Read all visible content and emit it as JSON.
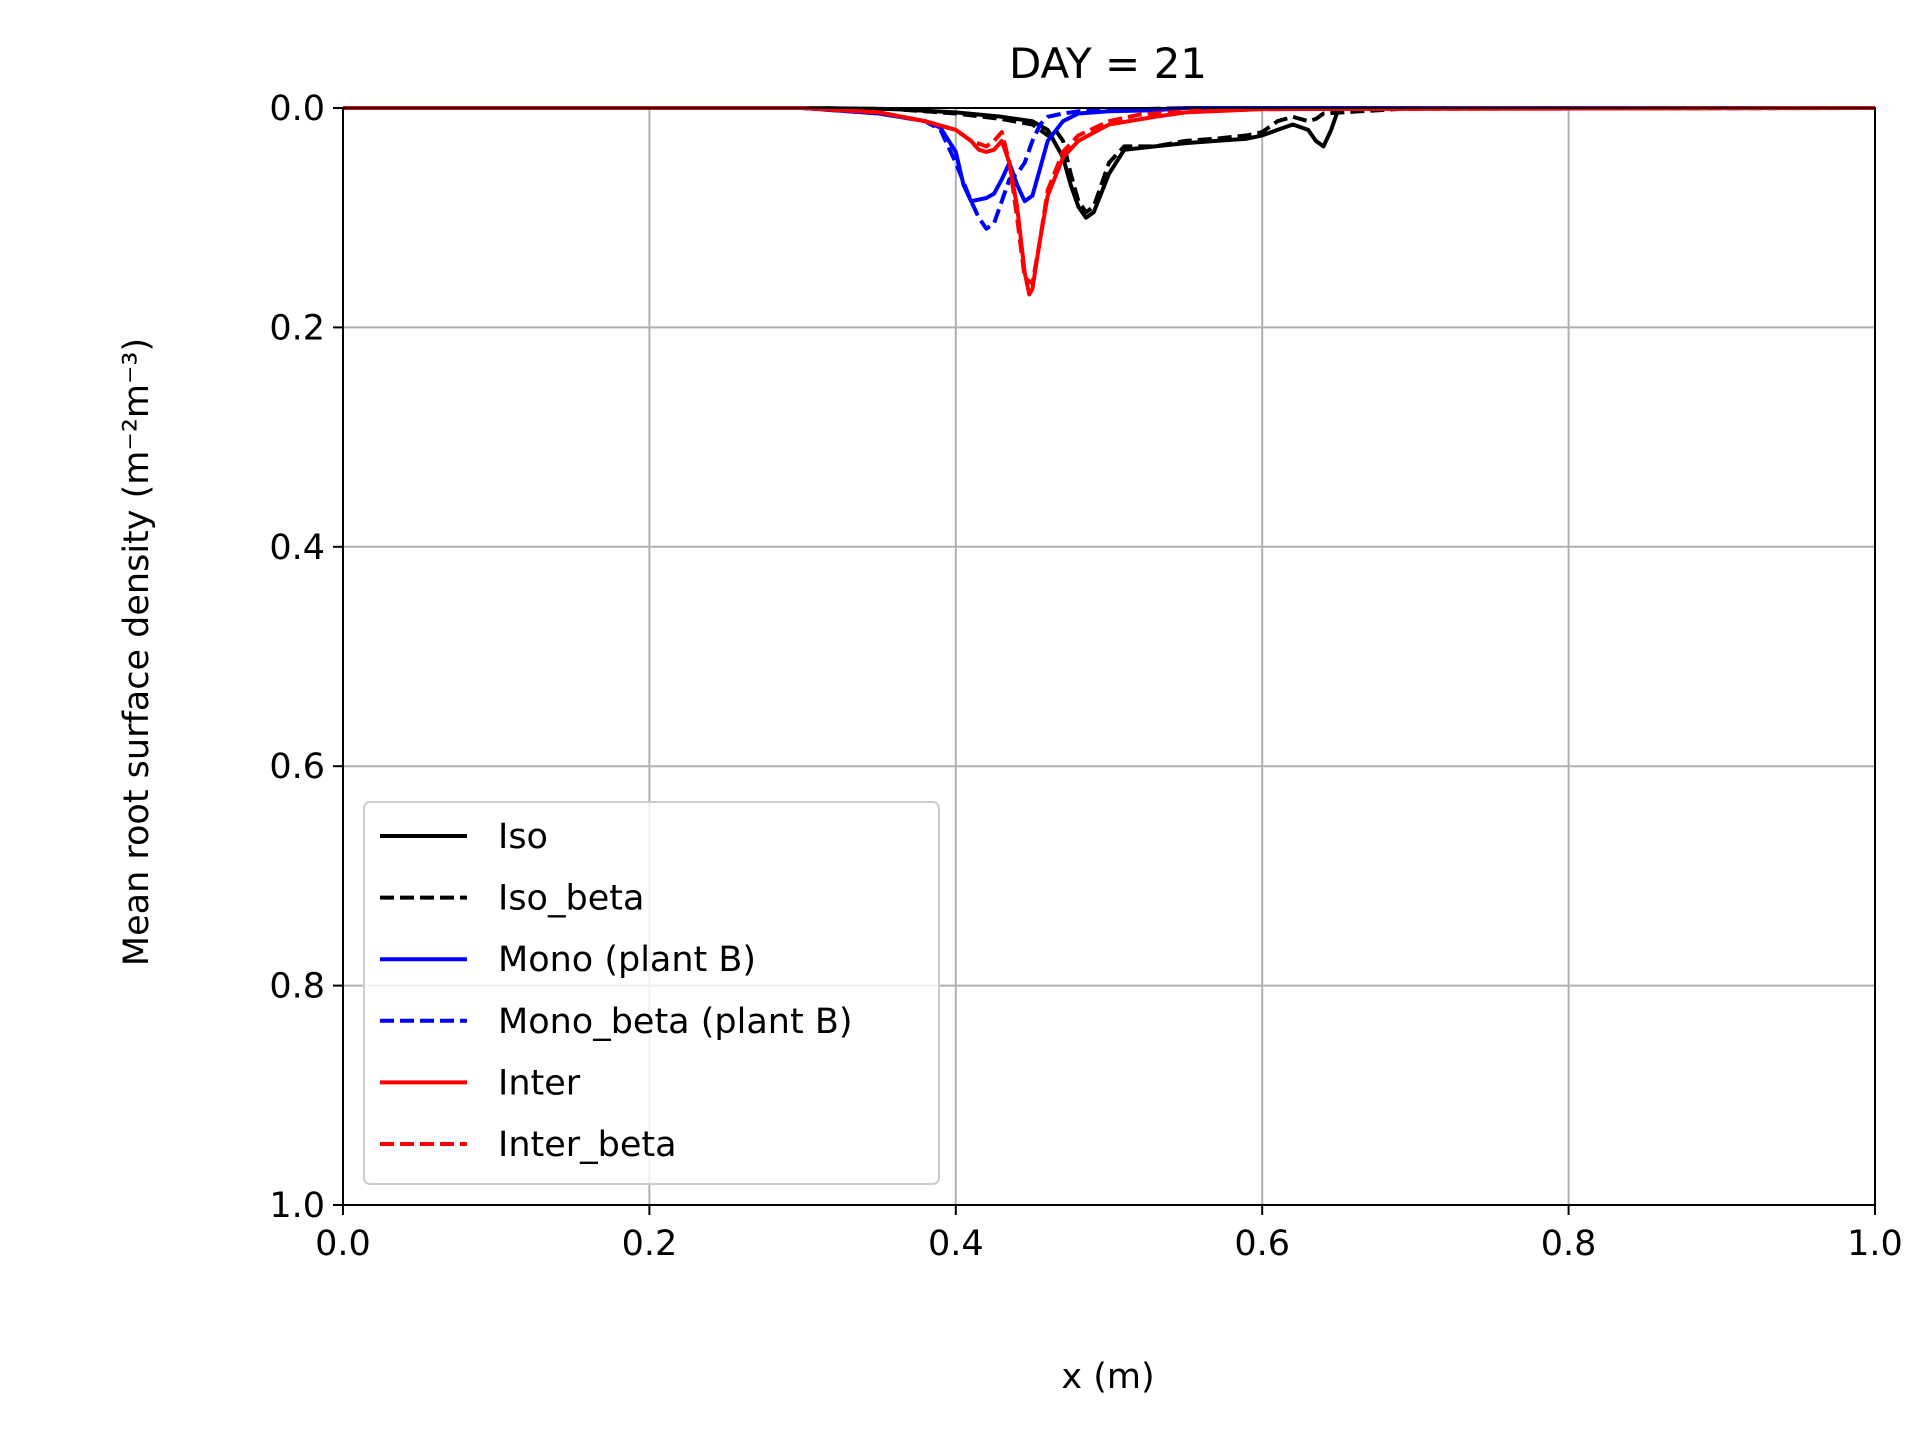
{
  "chart_data": {
    "type": "line",
    "title": "DAY = 21",
    "xlabel": "x (m)",
    "ylabel": "Mean root surface density (m⁻²m⁻³)",
    "xlim": [
      0,
      1
    ],
    "ylim": [
      0,
      1
    ],
    "y_inverted": true,
    "grid": true,
    "legend_position": "lower-left",
    "x_ticks": [
      {
        "value": 0.0,
        "label": "0.0"
      },
      {
        "value": 0.2,
        "label": "0.2"
      },
      {
        "value": 0.4,
        "label": "0.4"
      },
      {
        "value": 0.6,
        "label": "0.6"
      },
      {
        "value": 0.8,
        "label": "0.8"
      },
      {
        "value": 1.0,
        "label": "1.0"
      }
    ],
    "y_ticks": [
      {
        "value": 0.0,
        "label": "0.0"
      },
      {
        "value": 0.2,
        "label": "0.2"
      },
      {
        "value": 0.4,
        "label": "0.4"
      },
      {
        "value": 0.6,
        "label": "0.6"
      },
      {
        "value": 0.8,
        "label": "0.8"
      },
      {
        "value": 1.0,
        "label": "1.0"
      }
    ],
    "series": [
      {
        "name": "Iso",
        "color": "#000000",
        "dash": "solid",
        "x": [
          0.0,
          0.3,
          0.36,
          0.4,
          0.43,
          0.45,
          0.46,
          0.47,
          0.475,
          0.48,
          0.485,
          0.49,
          0.5,
          0.51,
          0.53,
          0.55,
          0.57,
          0.59,
          0.6,
          0.61,
          0.62,
          0.63,
          0.635,
          0.64,
          0.645,
          0.65,
          0.7,
          1.0
        ],
        "y": [
          0.0,
          0.0,
          0.001,
          0.004,
          0.008,
          0.012,
          0.02,
          0.045,
          0.07,
          0.09,
          0.1,
          0.095,
          0.06,
          0.038,
          0.035,
          0.032,
          0.03,
          0.028,
          0.025,
          0.02,
          0.015,
          0.02,
          0.03,
          0.035,
          0.02,
          0.0,
          0.0,
          0.0
        ]
      },
      {
        "name": "Iso_beta",
        "color": "#000000",
        "dash": "dashed",
        "x": [
          0.0,
          0.3,
          0.36,
          0.4,
          0.43,
          0.45,
          0.46,
          0.465,
          0.47,
          0.475,
          0.48,
          0.485,
          0.49,
          0.5,
          0.51,
          0.53,
          0.55,
          0.57,
          0.59,
          0.6,
          0.61,
          0.62,
          0.63,
          0.635,
          0.64,
          0.7,
          1.0
        ],
        "y": [
          0.0,
          0.0,
          0.001,
          0.005,
          0.01,
          0.015,
          0.025,
          0.02,
          0.03,
          0.06,
          0.085,
          0.095,
          0.09,
          0.05,
          0.035,
          0.035,
          0.03,
          0.028,
          0.025,
          0.022,
          0.012,
          0.008,
          0.012,
          0.01,
          0.005,
          0.0,
          0.0
        ]
      },
      {
        "name": "Mono (plant B)",
        "color": "#0000ff",
        "dash": "solid",
        "x": [
          0.0,
          0.3,
          0.35,
          0.38,
          0.39,
          0.4,
          0.405,
          0.41,
          0.42,
          0.425,
          0.43,
          0.435,
          0.44,
          0.445,
          0.45,
          0.455,
          0.46,
          0.47,
          0.48,
          0.5,
          0.53,
          0.55,
          1.0
        ],
        "y": [
          0.0,
          0.0,
          0.005,
          0.012,
          0.018,
          0.04,
          0.07,
          0.085,
          0.082,
          0.078,
          0.065,
          0.05,
          0.07,
          0.085,
          0.08,
          0.055,
          0.03,
          0.012,
          0.005,
          0.003,
          0.002,
          0.0,
          0.0
        ]
      },
      {
        "name": "Mono_beta (plant B)",
        "color": "#0000ff",
        "dash": "dashed",
        "x": [
          0.0,
          0.3,
          0.35,
          0.38,
          0.39,
          0.4,
          0.41,
          0.415,
          0.42,
          0.425,
          0.43,
          0.435,
          0.44,
          0.445,
          0.45,
          0.455,
          0.46,
          0.47,
          0.48,
          0.5,
          0.52,
          0.55,
          1.0
        ],
        "y": [
          0.0,
          0.0,
          0.005,
          0.012,
          0.02,
          0.05,
          0.085,
          0.1,
          0.11,
          0.105,
          0.085,
          0.065,
          0.06,
          0.05,
          0.03,
          0.015,
          0.008,
          0.005,
          0.003,
          0.002,
          0.001,
          0.0,
          0.0
        ]
      },
      {
        "name": "Inter",
        "color": "#ff0000",
        "dash": "solid",
        "x": [
          0.0,
          0.3,
          0.35,
          0.38,
          0.4,
          0.41,
          0.415,
          0.42,
          0.425,
          0.43,
          0.435,
          0.44,
          0.445,
          0.448,
          0.45,
          0.455,
          0.46,
          0.47,
          0.48,
          0.5,
          0.53,
          0.55,
          0.6,
          1.0
        ],
        "y": [
          0.0,
          0.0,
          0.004,
          0.012,
          0.02,
          0.03,
          0.038,
          0.04,
          0.038,
          0.03,
          0.05,
          0.09,
          0.15,
          0.17,
          0.165,
          0.12,
          0.08,
          0.045,
          0.03,
          0.015,
          0.008,
          0.004,
          0.001,
          0.0
        ]
      },
      {
        "name": "Inter_beta",
        "color": "#ff0000",
        "dash": "dashed",
        "x": [
          0.0,
          0.3,
          0.35,
          0.38,
          0.4,
          0.41,
          0.42,
          0.425,
          0.43,
          0.435,
          0.44,
          0.445,
          0.45,
          0.455,
          0.46,
          0.47,
          0.48,
          0.5,
          0.52,
          0.55,
          0.6,
          1.0
        ],
        "y": [
          0.0,
          0.0,
          0.004,
          0.012,
          0.02,
          0.03,
          0.035,
          0.03,
          0.022,
          0.05,
          0.1,
          0.155,
          0.16,
          0.12,
          0.075,
          0.04,
          0.025,
          0.012,
          0.006,
          0.003,
          0.001,
          0.0
        ]
      }
    ]
  }
}
